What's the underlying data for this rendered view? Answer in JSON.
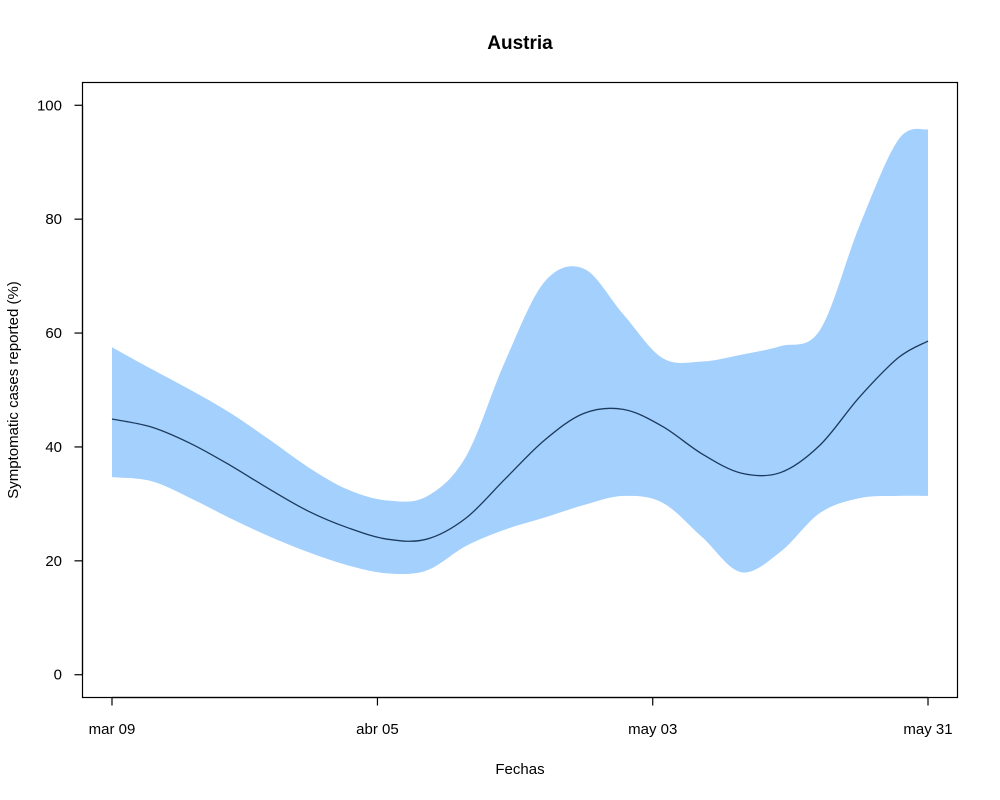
{
  "chart_data": {
    "type": "line",
    "title": "Austria",
    "xlabel": "Fechas",
    "ylabel": "Symptomatic cases reported (%)",
    "ylim": [
      -4,
      104
    ],
    "xlim": [
      "2020-03-06",
      "2020-06-03"
    ],
    "grid": false,
    "legend": "none",
    "x_ticks": [
      {
        "date": "2020-03-09",
        "label": "mar 09"
      },
      {
        "date": "2020-04-05",
        "label": "abr 05"
      },
      {
        "date": "2020-05-03",
        "label": "may 03"
      },
      {
        "date": "2020-05-31",
        "label": "may 31"
      }
    ],
    "y_ticks": [
      0,
      20,
      40,
      60,
      80,
      100
    ],
    "colors": {
      "band": "#a3d0fd",
      "line": "#1c3a5e",
      "axis": "#000000"
    },
    "series": [
      {
        "role": "estimate",
        "x": [
          "2020-03-09",
          "2020-03-13",
          "2020-03-17",
          "2020-03-21",
          "2020-03-25",
          "2020-03-29",
          "2020-04-02",
          "2020-04-06",
          "2020-04-10",
          "2020-04-14",
          "2020-04-18",
          "2020-04-22",
          "2020-04-26",
          "2020-04-30",
          "2020-05-04",
          "2020-05-08",
          "2020-05-12",
          "2020-05-16",
          "2020-05-20",
          "2020-05-24",
          "2020-05-28",
          "2020-05-31"
        ],
        "values": [
          44.9,
          43.5,
          40.6,
          36.8,
          32.6,
          28.7,
          25.8,
          23.8,
          23.8,
          27.5,
          34.4,
          41.2,
          45.9,
          46.6,
          43.6,
          38.8,
          35.4,
          35.5,
          40.3,
          48.7,
          55.7,
          58.6
        ]
      },
      {
        "role": "upper-bound",
        "x": [
          "2020-03-09",
          "2020-03-13",
          "2020-03-17",
          "2020-03-21",
          "2020-03-25",
          "2020-03-29",
          "2020-04-02",
          "2020-04-06",
          "2020-04-10",
          "2020-04-14",
          "2020-04-18",
          "2020-04-22",
          "2020-04-26",
          "2020-04-30",
          "2020-05-04",
          "2020-05-08",
          "2020-05-12",
          "2020-05-16",
          "2020-05-20",
          "2020-05-24",
          "2020-05-28",
          "2020-05-31"
        ],
        "values": [
          57.5,
          53.7,
          50.0,
          46.0,
          41.3,
          36.4,
          32.5,
          30.6,
          31.3,
          38.3,
          55.1,
          69.0,
          71.3,
          63.3,
          55.6,
          55.0,
          56.2,
          57.7,
          60.5,
          78.7,
          94.0,
          95.8
        ]
      },
      {
        "role": "lower-bound",
        "x": [
          "2020-03-09",
          "2020-03-13",
          "2020-03-17",
          "2020-03-21",
          "2020-03-25",
          "2020-03-29",
          "2020-04-02",
          "2020-04-06",
          "2020-04-10",
          "2020-04-14",
          "2020-04-18",
          "2020-04-22",
          "2020-04-26",
          "2020-04-30",
          "2020-05-04",
          "2020-05-08",
          "2020-05-12",
          "2020-05-16",
          "2020-05-20",
          "2020-05-24",
          "2020-05-28",
          "2020-05-31"
        ],
        "values": [
          34.7,
          34.0,
          31.0,
          27.5,
          24.3,
          21.5,
          19.2,
          17.8,
          18.3,
          22.6,
          25.5,
          27.6,
          29.8,
          31.4,
          30.2,
          24.2,
          18.0,
          21.6,
          28.4,
          31.0,
          31.4,
          31.4
        ]
      }
    ]
  }
}
